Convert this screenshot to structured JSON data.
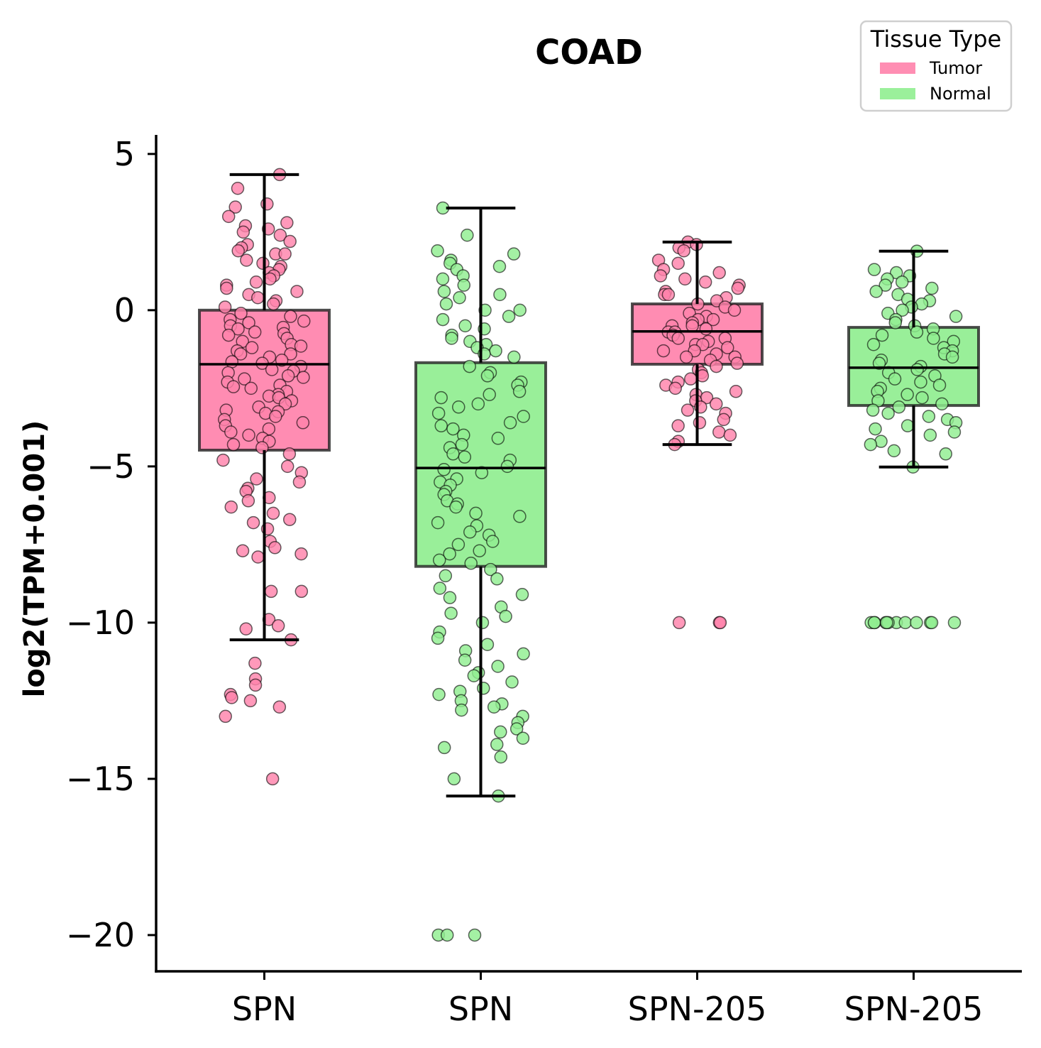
{
  "chart_data": {
    "type": "box",
    "title": "COAD",
    "ylabel": "log2(TPM+0.001)",
    "categories": [
      "SPN",
      "SPN",
      "SPN-205",
      "SPN-205"
    ],
    "xlim": [
      -0.5,
      3.5
    ],
    "ylim": [
      -21.16,
      5.61
    ],
    "yticks": [
      5,
      0,
      -5,
      -10,
      -15,
      -20
    ],
    "ytick_labels": [
      "5",
      "0",
      "−5",
      "−10",
      "−15",
      "−20"
    ],
    "grid": false,
    "legend": {
      "title": "Tissue Type",
      "position": "top-right",
      "entries": [
        {
          "name": "Tumor",
          "color": "#ff82ab"
        },
        {
          "name": "Normal",
          "color": "#90ee90"
        }
      ]
    },
    "series": [
      {
        "name": "Tumor",
        "category_index": 0,
        "whisker_low": -10.55,
        "q1": -4.48,
        "median": -1.73,
        "q3": 0.0,
        "whisker_high": 4.34,
        "points": [
          4.34,
          3.9,
          3.4,
          3.3,
          3.0,
          2.8,
          2.7,
          2.6,
          2.5,
          2.4,
          2.2,
          2.1,
          2.0,
          1.9,
          1.8,
          1.8,
          1.6,
          1.5,
          1.4,
          1.3,
          1.2,
          1.1,
          1.0,
          0.9,
          0.8,
          0.7,
          0.6,
          0.5,
          0.4,
          0.3,
          0.2,
          0.1,
          -0.1,
          -0.2,
          -0.3,
          -0.35,
          -0.4,
          -0.5,
          -0.55,
          -0.6,
          -0.7,
          -0.75,
          -0.8,
          -0.9,
          -1.0,
          -1.1,
          -1.15,
          -1.2,
          -1.3,
          -1.4,
          -1.4,
          -1.5,
          -1.6,
          -1.65,
          -1.7,
          -1.8,
          -1.9,
          -1.95,
          -2.0,
          -2.1,
          -2.15,
          -2.2,
          -2.3,
          -2.4,
          -2.45,
          -2.5,
          -2.6,
          -2.7,
          -2.75,
          -2.8,
          -2.9,
          -3.0,
          -3.1,
          -3.2,
          -3.25,
          -3.3,
          -3.4,
          -3.5,
          -3.6,
          -3.7,
          -3.8,
          -3.9,
          -4.0,
          -4.1,
          -4.2,
          -4.3,
          -4.4,
          -4.6,
          -4.8,
          -5.0,
          -5.2,
          -5.4,
          -5.5,
          -5.7,
          -5.8,
          -6.0,
          -6.1,
          -6.3,
          -6.5,
          -6.7,
          -6.8,
          -7.0,
          -7.4,
          -7.6,
          -7.7,
          -7.8,
          -7.9,
          -9.0,
          -9.0,
          -9.9,
          -10.1,
          -10.2,
          -10.55,
          -11.3,
          -11.8,
          -12.0,
          -12.3,
          -12.4,
          -12.5,
          -12.7,
          -13.0,
          -15.0
        ]
      },
      {
        "name": "Normal",
        "category_index": 1,
        "whisker_low": -15.55,
        "q1": -8.2,
        "median": -5.05,
        "q3": -1.68,
        "whisker_high": 3.27,
        "points": [
          3.27,
          2.4,
          1.9,
          1.8,
          1.6,
          1.5,
          1.4,
          1.3,
          1.1,
          1.0,
          0.8,
          0.6,
          0.5,
          0.4,
          0.2,
          0.0,
          0.0,
          -0.2,
          -0.3,
          -0.5,
          -0.6,
          -0.8,
          -0.9,
          -1.0,
          -1.1,
          -1.2,
          -1.3,
          -1.4,
          -1.5,
          -1.8,
          -2.0,
          -2.1,
          -2.3,
          -2.4,
          -2.6,
          -2.7,
          -2.8,
          -3.0,
          -3.1,
          -3.3,
          -3.4,
          -3.6,
          -3.7,
          -3.8,
          -4.0,
          -4.1,
          -4.3,
          -4.4,
          -4.6,
          -4.7,
          -4.8,
          -5.0,
          -5.1,
          -5.2,
          -5.4,
          -5.5,
          -5.6,
          -5.8,
          -5.9,
          -6.1,
          -6.2,
          -6.3,
          -6.5,
          -6.6,
          -6.8,
          -6.9,
          -7.1,
          -7.2,
          -7.4,
          -7.5,
          -7.7,
          -7.8,
          -8.0,
          -8.1,
          -8.3,
          -8.5,
          -8.6,
          -8.9,
          -9.1,
          -9.2,
          -9.5,
          -9.7,
          -9.8,
          -10.0,
          -10.3,
          -10.5,
          -10.7,
          -10.9,
          -11.0,
          -11.2,
          -11.4,
          -11.6,
          -11.7,
          -11.9,
          -12.1,
          -12.2,
          -12.3,
          -12.5,
          -12.6,
          -12.7,
          -12.8,
          -13.0,
          -13.2,
          -13.4,
          -13.5,
          -13.7,
          -13.9,
          -14.0,
          -14.3,
          -15.0,
          -15.55,
          -20.0,
          -20.0,
          -20.0
        ]
      },
      {
        "name": "Tumor",
        "category_index": 2,
        "whisker_low": -4.3,
        "q1": -1.73,
        "median": -0.68,
        "q3": 0.2,
        "whisker_high": 2.18,
        "points": [
          2.18,
          2.1,
          2.0,
          1.9,
          1.6,
          1.5,
          1.3,
          1.2,
          1.1,
          1.0,
          0.9,
          0.8,
          0.7,
          0.6,
          0.5,
          0.5,
          0.4,
          0.3,
          0.2,
          0.1,
          0.0,
          -0.1,
          -0.2,
          -0.3,
          -0.3,
          -0.4,
          -0.5,
          -0.5,
          -0.6,
          -0.7,
          -0.7,
          -0.8,
          -0.9,
          -0.9,
          -1.0,
          -1.1,
          -1.1,
          -1.2,
          -1.3,
          -1.3,
          -1.4,
          -1.5,
          -1.5,
          -1.6,
          -1.7,
          -1.8,
          -1.9,
          -2.0,
          -2.1,
          -2.2,
          -2.3,
          -2.4,
          -2.5,
          -2.6,
          -2.7,
          -2.8,
          -2.9,
          -3.0,
          -3.1,
          -3.2,
          -3.3,
          -3.5,
          -3.6,
          -3.7,
          -3.9,
          -4.0,
          -4.2,
          -4.3,
          -10.0,
          -10.0,
          -10.0
        ]
      },
      {
        "name": "Normal",
        "category_index": 3,
        "whisker_low": -5.02,
        "q1": -3.05,
        "median": -1.84,
        "q3": -0.55,
        "whisker_high": 1.89,
        "points": [
          1.89,
          1.3,
          1.2,
          1.1,
          1.0,
          0.9,
          0.8,
          0.7,
          0.6,
          0.5,
          0.35,
          0.3,
          0.2,
          0.1,
          0.0,
          -0.1,
          -0.2,
          -0.3,
          -0.4,
          -0.5,
          -0.6,
          -0.7,
          -0.8,
          -0.9,
          -1.0,
          -1.1,
          -1.2,
          -1.3,
          -1.4,
          -1.5,
          -1.6,
          -1.7,
          -1.8,
          -1.9,
          -2.0,
          -2.1,
          -2.2,
          -2.3,
          -2.4,
          -2.5,
          -2.6,
          -2.7,
          -2.8,
          -2.9,
          -3.0,
          -3.1,
          -3.2,
          -3.3,
          -3.4,
          -3.5,
          -3.6,
          -3.7,
          -3.8,
          -3.9,
          -4.0,
          -4.2,
          -4.3,
          -4.5,
          -4.6,
          -5.02,
          -10.0,
          -10.0,
          -10.0,
          -10.0,
          -10.0,
          -10.0,
          -10.0,
          -10.0,
          -10.0,
          -10.0,
          -10.0,
          -10.0
        ]
      }
    ]
  }
}
